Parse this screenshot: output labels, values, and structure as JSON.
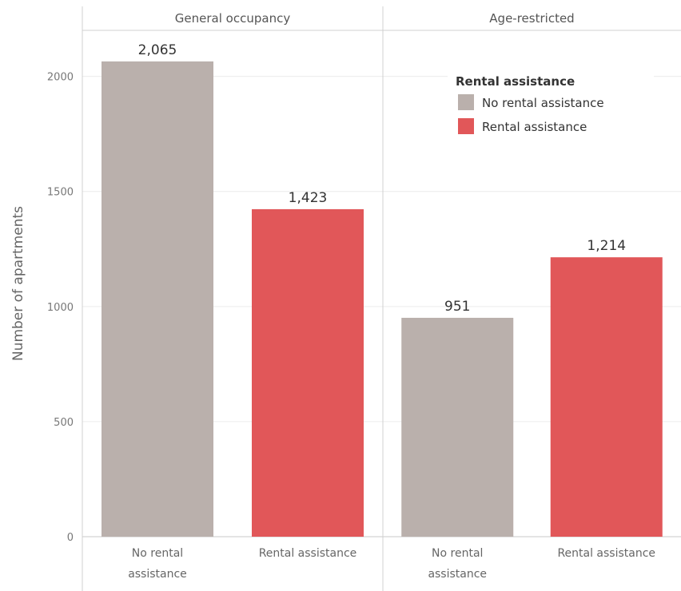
{
  "chart_data": {
    "type": "bar",
    "panels": [
      {
        "title": "General occupancy",
        "categories": [
          "No rental assistance",
          "Rental assistance"
        ],
        "category_labels": [
          [
            "No rental",
            "assistance"
          ],
          [
            "Rental assistance"
          ]
        ],
        "values": [
          2065,
          1423
        ],
        "value_labels": [
          "2,065",
          "1,423"
        ],
        "colors": [
          "#BAB0AC",
          "#E15759"
        ]
      },
      {
        "title": "Age-restricted",
        "categories": [
          "No rental assistance",
          "Rental assistance"
        ],
        "category_labels": [
          [
            "No rental",
            "assistance"
          ],
          [
            "Rental assistance"
          ]
        ],
        "values": [
          951,
          1214
        ],
        "value_labels": [
          "951",
          "1,214"
        ],
        "colors": [
          "#BAB0AC",
          "#E15759"
        ]
      }
    ],
    "ylabel": "Number of apartments",
    "ylim": [
      0,
      2200
    ],
    "yticks": [
      0,
      500,
      1000,
      1500,
      2000
    ],
    "grid": true,
    "legend": {
      "title": "Rental assistance",
      "placement": "top-right",
      "items": [
        {
          "label": "No rental assistance",
          "color": "#BAB0AC"
        },
        {
          "label": "Rental assistance",
          "color": "#E15759"
        }
      ]
    }
  }
}
